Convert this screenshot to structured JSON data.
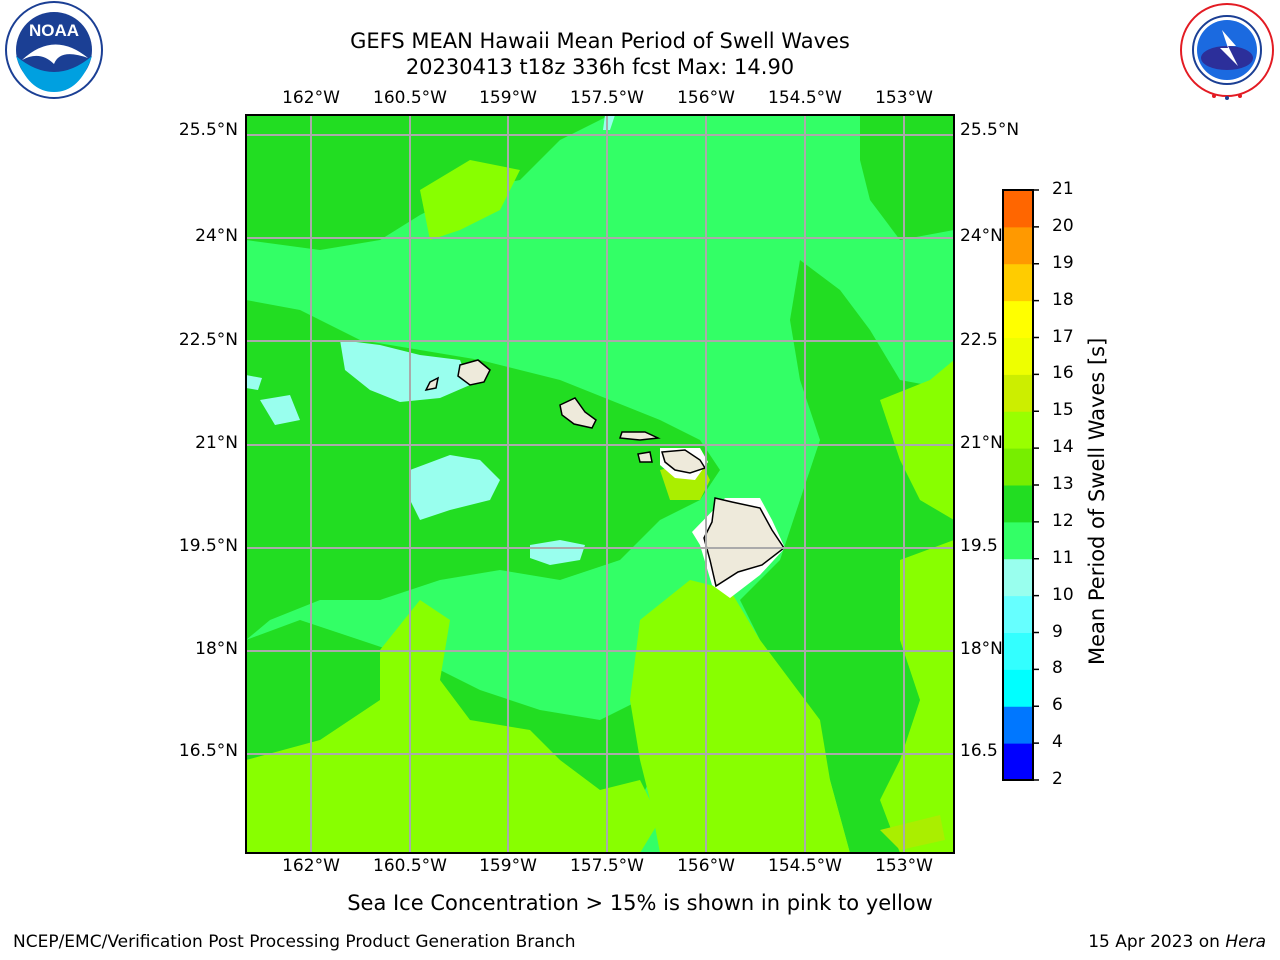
{
  "title": {
    "line1": "GEFS MEAN Hawaii Mean Period of Swell Waves",
    "line2": "20230413 t18z 336h fcst   Max: 14.90"
  },
  "lon_labels": [
    "162°W",
    "160.5°W",
    "159°W",
    "157.5°W",
    "156°W",
    "154.5°W",
    "153°W"
  ],
  "lat_labels": [
    "25.5°N",
    "24°N",
    "22.5°N",
    "21°N",
    "19.5°N",
    "18°N",
    "16.5°N"
  ],
  "right_lat_labels": [
    "25.5°N",
    "24°N",
    "22.5",
    "21°N",
    "19.5",
    "18°N",
    "16.5"
  ],
  "colorbar": {
    "title": "Mean Period of Swell Waves [s]",
    "levels": [
      "2",
      "4",
      "6",
      "8",
      "9",
      "10",
      "11",
      "12",
      "13",
      "14",
      "15",
      "16",
      "17",
      "18",
      "19",
      "20",
      "21"
    ],
    "colors": [
      "#0000ff",
      "#0077ff",
      "#00ffff",
      "#33ffff",
      "#66ffff",
      "#99ffee",
      "#33ff66",
      "#22dd22",
      "#77ee00",
      "#99ff00",
      "#ccee00",
      "#eeff00",
      "#ffff00",
      "#ffcc00",
      "#ff9900",
      "#ff6600",
      "#ff3300",
      "#ff0000"
    ]
  },
  "map_colors": {
    "light_green": "#33ff66",
    "green": "#22dd22",
    "lime": "#88ff00",
    "yellow_green": "#aaee00",
    "cyan_light": "#99ffee",
    "land": "#eeeadb",
    "grid": "#aaaaaa"
  },
  "note": "Sea Ice Concentration > 15% is shown in pink to yellow",
  "footer": {
    "left": "NCEP/EMC/Verification Post Processing Product Generation Branch",
    "right_prefix": "15 Apr 2023 on ",
    "right_host": "Hera"
  },
  "logos": {
    "noaa_text": "NOAA",
    "noaa_ring": "NATIONAL OCEANIC AND ATMOSPHERIC ADMINISTRATION · U.S. DEPARTMENT OF COMMERCE",
    "nws_ring": "NATIONAL WEATHER SERVICE"
  }
}
